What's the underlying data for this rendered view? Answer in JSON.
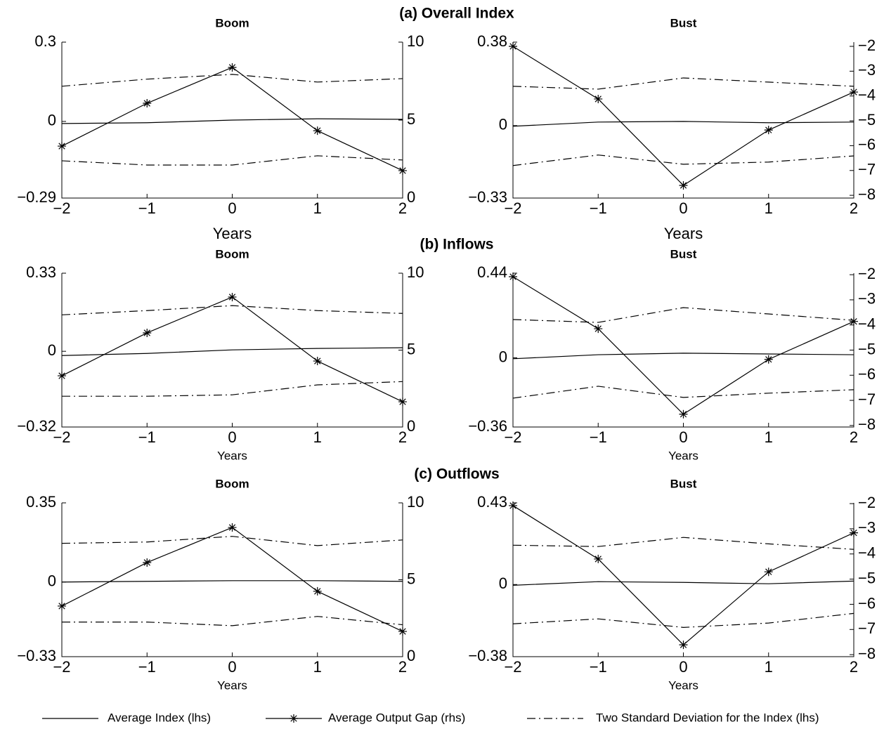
{
  "legend": [
    {
      "name": "Average Index (lhs)",
      "style": "solid"
    },
    {
      "name": "Average Output Gap (rhs)",
      "style": "star"
    },
    {
      "name": "Two Standard Deviation for the Index (lhs)",
      "style": "dashdot"
    }
  ],
  "chart_data": [
    {
      "type": "line",
      "group_title": "(a) Overall Index",
      "title": "Boom",
      "xlabel": "Years",
      "x": [
        -2,
        -1,
        0,
        1,
        2
      ],
      "xlim": [
        -2,
        2
      ],
      "xticks": [
        {
          "value": -2,
          "label": "−2"
        },
        {
          "value": -1,
          "label": "−1"
        },
        0,
        1,
        2
      ],
      "ylim": [
        -0.29,
        0.3
      ],
      "yticks": [
        {
          "value": -0.29,
          "label": "−0.29"
        },
        0,
        0.3
      ],
      "y2lim": [
        0,
        10
      ],
      "y2ticks": [
        0,
        5,
        10
      ],
      "series": [
        {
          "style": "solid",
          "color": "#000000",
          "values": [
            -0.008,
            -0.005,
            0.005,
            0.01,
            0.008
          ]
        },
        {
          "style": "star",
          "color": "#000000",
          "axis": "y2",
          "values": [
            3.33,
            6.08,
            8.38,
            4.32,
            1.76
          ]
        },
        {
          "style": "dashdot",
          "color": "#000000",
          "values": [
            0.133,
            0.16,
            0.178,
            0.149,
            0.162
          ]
        },
        {
          "style": "dashdot",
          "color": "#000000",
          "values": [
            -0.149,
            -0.165,
            -0.165,
            -0.13,
            -0.146
          ]
        }
      ]
    },
    {
      "type": "line",
      "title": "Bust",
      "xlabel": "Years",
      "x": [
        -2,
        -1,
        0,
        1,
        2
      ],
      "xlim": [
        -2,
        2
      ],
      "xticks": [
        {
          "value": -2,
          "label": "−2"
        },
        {
          "value": -1,
          "label": "−1"
        },
        0,
        1,
        2
      ],
      "ylim": [
        -0.33,
        0.38
      ],
      "yticks": [
        {
          "value": -0.33,
          "label": "−0.33"
        },
        0,
        0.38
      ],
      "y2lim": [
        -8.11,
        -1.83
      ],
      "y2ticks": [
        {
          "value": -8,
          "label": "−8"
        },
        {
          "value": -7,
          "label": "−7"
        },
        {
          "value": -6,
          "label": "−6"
        },
        {
          "value": -5,
          "label": "−5"
        },
        {
          "value": -4,
          "label": "−4"
        },
        {
          "value": -3,
          "label": "−3"
        },
        {
          "value": -2,
          "label": "−2"
        }
      ],
      "series": [
        {
          "style": "solid",
          "color": "#000000",
          "values": [
            -0.003,
            0.016,
            0.019,
            0.013,
            0.016
          ]
        },
        {
          "style": "star",
          "color": "#000000",
          "axis": "y2",
          "values": [
            -2.0,
            -4.12,
            -7.6,
            -5.37,
            -3.84
          ]
        },
        {
          "style": "dashdot",
          "color": "#000000",
          "values": [
            0.179,
            0.166,
            0.217,
            0.198,
            0.179
          ]
        },
        {
          "style": "dashdot",
          "color": "#000000",
          "values": [
            -0.182,
            -0.134,
            -0.176,
            -0.166,
            -0.138
          ]
        }
      ]
    },
    {
      "type": "line",
      "group_title": "(b) Inflows",
      "title": "Boom",
      "xlabel": "Years",
      "x": [
        -2,
        -1,
        0,
        1,
        2
      ],
      "xlim": [
        -2,
        2
      ],
      "xticks": [
        {
          "value": -2,
          "label": "−2"
        },
        {
          "value": -1,
          "label": "−1"
        },
        0,
        1,
        2
      ],
      "ylim": [
        -0.32,
        0.33
      ],
      "yticks": [
        {
          "value": -0.32,
          "label": "−0.32"
        },
        0,
        0.33
      ],
      "y2lim": [
        0,
        10
      ],
      "y2ticks": [
        0,
        5,
        10
      ],
      "series": [
        {
          "style": "solid",
          "color": "#000000",
          "values": [
            -0.018,
            -0.009,
            0.006,
            0.012,
            0.015
          ]
        },
        {
          "style": "star",
          "color": "#000000",
          "axis": "y2",
          "values": [
            3.33,
            6.12,
            8.45,
            4.29,
            1.64
          ]
        },
        {
          "style": "dashdot",
          "color": "#000000",
          "values": [
            0.154,
            0.172,
            0.193,
            0.172,
            0.16
          ]
        },
        {
          "style": "dashdot",
          "color": "#000000",
          "values": [
            -0.19,
            -0.19,
            -0.184,
            -0.142,
            -0.128
          ]
        }
      ]
    },
    {
      "type": "line",
      "title": "Bust",
      "xlabel": "Years",
      "x": [
        -2,
        -1,
        0,
        1,
        2
      ],
      "xlim": [
        -2,
        2
      ],
      "xticks": [
        {
          "value": -2,
          "label": "−2"
        },
        {
          "value": -1,
          "label": "−1"
        },
        0,
        1,
        2
      ],
      "ylim": [
        -0.36,
        0.44
      ],
      "yticks": [
        {
          "value": -0.36,
          "label": "−0.36"
        },
        0,
        0.44
      ],
      "y2lim": [
        -8.06,
        -1.94
      ],
      "y2ticks": [
        {
          "value": -8,
          "label": "−8"
        },
        {
          "value": -7,
          "label": "−7"
        },
        {
          "value": -6,
          "label": "−6"
        },
        {
          "value": -5,
          "label": "−5"
        },
        {
          "value": -4,
          "label": "−4"
        },
        {
          "value": -3,
          "label": "−3"
        },
        {
          "value": -2,
          "label": "−2"
        }
      ],
      "series": [
        {
          "style": "solid",
          "color": "#000000",
          "values": [
            -0.005,
            0.016,
            0.024,
            0.02,
            0.016
          ]
        },
        {
          "style": "star",
          "color": "#000000",
          "axis": "y2",
          "values": [
            -2.08,
            -4.15,
            -7.55,
            -5.37,
            -3.86
          ]
        },
        {
          "style": "dashdot",
          "color": "#000000",
          "values": [
            0.199,
            0.184,
            0.261,
            0.228,
            0.195
          ]
        },
        {
          "style": "dashdot",
          "color": "#000000",
          "values": [
            -0.21,
            -0.148,
            -0.206,
            -0.184,
            -0.166
          ]
        }
      ]
    },
    {
      "type": "line",
      "group_title": "(c) Outflows",
      "title": "Boom",
      "xlabel": "Years",
      "x": [
        -2,
        -1,
        0,
        1,
        2
      ],
      "xlim": [
        -2,
        2
      ],
      "xticks": [
        {
          "value": -2,
          "label": "−2"
        },
        {
          "value": -1,
          "label": "−1"
        },
        0,
        1,
        2
      ],
      "ylim": [
        -0.33,
        0.35
      ],
      "yticks": [
        {
          "value": -0.33,
          "label": "−0.33"
        },
        0,
        0.35
      ],
      "y2lim": [
        0,
        10
      ],
      "y2ticks": [
        0,
        5,
        10
      ],
      "series": [
        {
          "style": "solid",
          "color": "#000000",
          "values": [
            0,
            0.003,
            0.006,
            0.006,
            0.003
          ]
        },
        {
          "style": "star",
          "color": "#000000",
          "axis": "y2",
          "values": [
            3.29,
            6.12,
            8.4,
            4.25,
            1.64
          ]
        },
        {
          "style": "dashdot",
          "color": "#000000",
          "values": [
            0.171,
            0.177,
            0.202,
            0.161,
            0.186
          ]
        },
        {
          "style": "dashdot",
          "color": "#000000",
          "values": [
            -0.177,
            -0.177,
            -0.193,
            -0.152,
            -0.189
          ]
        }
      ]
    },
    {
      "type": "line",
      "title": "Bust",
      "xlabel": "Years",
      "x": [
        -2,
        -1,
        0,
        1,
        2
      ],
      "xlim": [
        -2,
        2
      ],
      "xticks": [
        {
          "value": -2,
          "label": "−2"
        },
        {
          "value": -1,
          "label": "−1"
        },
        0,
        1,
        2
      ],
      "ylim": [
        -0.38,
        0.43
      ],
      "yticks": [
        {
          "value": -0.38,
          "label": "−0.38"
        },
        0,
        0.43
      ],
      "y2lim": [
        -8.08,
        -1.97
      ],
      "y2ticks": [
        {
          "value": -8,
          "label": "−8"
        },
        {
          "value": -7,
          "label": "−7"
        },
        {
          "value": -6,
          "label": "−6"
        },
        {
          "value": -5,
          "label": "−5"
        },
        {
          "value": -4,
          "label": "−4"
        },
        {
          "value": -3,
          "label": "−3"
        },
        {
          "value": -2,
          "label": "−2"
        }
      ],
      "series": [
        {
          "style": "solid",
          "color": "#000000",
          "values": [
            -0.004,
            0.015,
            0.011,
            0.004,
            0.018
          ]
        },
        {
          "style": "star",
          "color": "#000000",
          "axis": "y2",
          "values": [
            -2.08,
            -4.2,
            -7.61,
            -4.71,
            -3.16
          ]
        },
        {
          "style": "dashdot",
          "color": "#000000",
          "values": [
            0.207,
            0.2,
            0.248,
            0.214,
            0.185
          ]
        },
        {
          "style": "dashdot",
          "color": "#000000",
          "values": [
            -0.207,
            -0.181,
            -0.226,
            -0.203,
            -0.152
          ]
        }
      ]
    }
  ]
}
